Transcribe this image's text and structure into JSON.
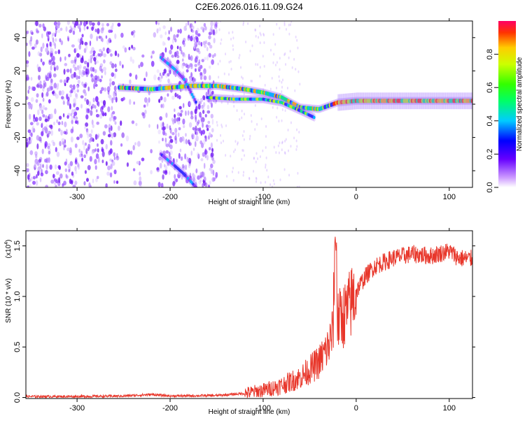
{
  "title": "C2E6.2026.016.11.09.G24",
  "chart_data": [
    {
      "type": "heatmap",
      "name": "spectrogram",
      "xlabel": "Height of straight line (km)",
      "ylabel": "Frequency (Hz)",
      "xlim": [
        -355,
        125
      ],
      "ylim": [
        -50,
        50
      ],
      "xticks": [
        -300,
        -200,
        -100,
        0,
        100
      ],
      "yticks": [
        -40,
        -20,
        0,
        20,
        40
      ],
      "colorbar": {
        "label": "Normalized spectral amplitude",
        "range": [
          0,
          1
        ],
        "ticks": [
          "0.0",
          "0.2",
          "0.4",
          "0.6",
          "0.8"
        ],
        "tick_values": [
          0,
          0.2,
          0.4,
          0.6,
          0.8
        ]
      },
      "ridges": [
        {
          "name": "main-tone",
          "points": [
            [
              -255,
              10
            ],
            [
              -220,
              9
            ],
            [
              -178,
              11
            ],
            [
              -150,
              11
            ],
            [
              -120,
              9
            ],
            [
              -100,
              7
            ],
            [
              -80,
              4
            ],
            [
              -60,
              -2
            ],
            [
              -40,
              -3
            ],
            [
              -20,
              1
            ],
            [
              0,
              2
            ],
            [
              40,
              2
            ],
            [
              80,
              2
            ],
            [
              125,
              2
            ]
          ]
        },
        {
          "name": "secondary-tone",
          "points": [
            [
              -160,
              4
            ],
            [
              -130,
              3
            ],
            [
              -100,
              3
            ],
            [
              -80,
              1
            ],
            [
              -60,
              -4
            ],
            [
              -45,
              -8
            ]
          ]
        },
        {
          "name": "descending-upper",
          "points": [
            [
              -210,
              28
            ],
            [
              -195,
              21
            ],
            [
              -185,
              15
            ],
            [
              -172,
              1
            ]
          ]
        },
        {
          "name": "descending-lower",
          "points": [
            [
              -210,
              -30
            ],
            [
              -195,
              -37
            ],
            [
              -185,
              -42
            ],
            [
              -172,
              -50
            ]
          ]
        }
      ]
    },
    {
      "type": "line",
      "name": "snr",
      "xlabel": "Height of straight line (km)",
      "ylabel": "SNR (10 * v/v)",
      "scale_note_base": "(x10",
      "scale_note_exp": "4",
      "scale_note_close": ")",
      "xlim": [
        -355,
        125
      ],
      "ylim": [
        -0.01,
        1.65
      ],
      "xticks": [
        -300,
        -200,
        -100,
        0,
        100
      ],
      "yticks": [
        "0.0",
        "0.5",
        "1.0",
        "1.5"
      ],
      "ytick_values": [
        0,
        0.5,
        1.0,
        1.5
      ],
      "color": "#e8362a",
      "series": [
        {
          "name": "SNR",
          "x": [
            -355,
            -300,
            -250,
            -220,
            -200,
            -150,
            -120,
            -100,
            -80,
            -60,
            -40,
            -30,
            -25,
            -22,
            -20,
            -10,
            0,
            10,
            20,
            40,
            60,
            80,
            100,
            110,
            125
          ],
          "y": [
            0.01,
            0.01,
            0.015,
            0.03,
            0.015,
            0.02,
            0.04,
            0.07,
            0.12,
            0.2,
            0.35,
            0.5,
            0.65,
            1.6,
            0.75,
            0.85,
            1.05,
            1.2,
            1.3,
            1.38,
            1.42,
            1.4,
            1.45,
            1.38,
            1.37
          ]
        }
      ]
    }
  ]
}
